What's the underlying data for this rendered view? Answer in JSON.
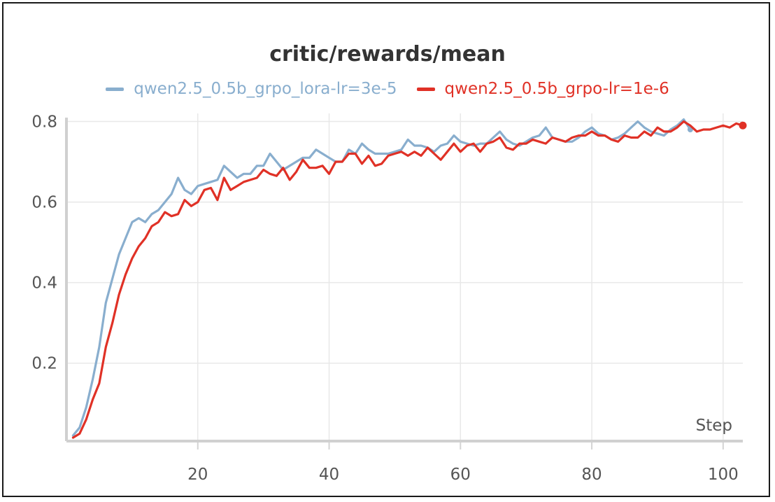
{
  "chart_data": {
    "type": "line",
    "title": "critic/rewards/mean",
    "xlabel": "Step",
    "ylabel": "",
    "xlim": [
      0,
      103
    ],
    "ylim": [
      0.01,
      0.82
    ],
    "x_ticks": [
      20,
      40,
      60,
      80,
      100
    ],
    "y_ticks": [
      0.2,
      0.4,
      0.6,
      0.8
    ],
    "grid": true,
    "legend_position": "top",
    "series": [
      {
        "name": "qwen2.5_0.5b_grpo_lora-lr=3e-5",
        "color": "#89aece",
        "x": [
          1,
          2,
          3,
          4,
          5,
          6,
          7,
          8,
          9,
          10,
          11,
          12,
          13,
          14,
          15,
          16,
          17,
          18,
          19,
          20,
          21,
          22,
          23,
          24,
          25,
          26,
          27,
          28,
          29,
          30,
          31,
          32,
          33,
          34,
          35,
          36,
          37,
          38,
          39,
          40,
          41,
          42,
          43,
          44,
          45,
          46,
          47,
          48,
          49,
          50,
          51,
          52,
          53,
          54,
          55,
          56,
          57,
          58,
          59,
          60,
          61,
          62,
          63,
          64,
          65,
          66,
          67,
          68,
          69,
          70,
          71,
          72,
          73,
          74,
          75,
          76,
          77,
          78,
          79,
          80,
          81,
          82,
          83,
          84,
          85,
          86,
          87,
          88,
          89,
          90,
          91,
          92,
          93,
          94,
          95
        ],
        "values": [
          0.02,
          0.04,
          0.09,
          0.16,
          0.24,
          0.35,
          0.41,
          0.47,
          0.51,
          0.55,
          0.56,
          0.55,
          0.57,
          0.58,
          0.6,
          0.62,
          0.66,
          0.63,
          0.62,
          0.64,
          0.645,
          0.65,
          0.655,
          0.69,
          0.675,
          0.66,
          0.67,
          0.67,
          0.69,
          0.69,
          0.72,
          0.7,
          0.68,
          0.69,
          0.7,
          0.71,
          0.71,
          0.73,
          0.72,
          0.71,
          0.7,
          0.7,
          0.73,
          0.72,
          0.745,
          0.73,
          0.72,
          0.72,
          0.72,
          0.725,
          0.73,
          0.755,
          0.74,
          0.74,
          0.735,
          0.725,
          0.74,
          0.745,
          0.765,
          0.75,
          0.745,
          0.74,
          0.745,
          0.745,
          0.76,
          0.775,
          0.755,
          0.745,
          0.74,
          0.75,
          0.76,
          0.765,
          0.785,
          0.76,
          0.755,
          0.75,
          0.75,
          0.76,
          0.775,
          0.785,
          0.77,
          0.765,
          0.755,
          0.76,
          0.77,
          0.785,
          0.8,
          0.785,
          0.775,
          0.77,
          0.765,
          0.78,
          0.79,
          0.805,
          0.78
        ]
      },
      {
        "name": "qwen2.5_0.5b_grpo-lr=1e-6",
        "color": "#e03126",
        "x": [
          1,
          2,
          3,
          4,
          5,
          6,
          7,
          8,
          9,
          10,
          11,
          12,
          13,
          14,
          15,
          16,
          17,
          18,
          19,
          20,
          21,
          22,
          23,
          24,
          25,
          26,
          27,
          28,
          29,
          30,
          31,
          32,
          33,
          34,
          35,
          36,
          37,
          38,
          39,
          40,
          41,
          42,
          43,
          44,
          45,
          46,
          47,
          48,
          49,
          50,
          51,
          52,
          53,
          54,
          55,
          56,
          57,
          58,
          59,
          60,
          61,
          62,
          63,
          64,
          65,
          66,
          67,
          68,
          69,
          70,
          71,
          72,
          73,
          74,
          75,
          76,
          77,
          78,
          79,
          80,
          81,
          82,
          83,
          84,
          85,
          86,
          87,
          88,
          89,
          90,
          91,
          92,
          93,
          94,
          95,
          96,
          97,
          98,
          99,
          100,
          101,
          102,
          103
        ],
        "values": [
          0.015,
          0.025,
          0.06,
          0.11,
          0.15,
          0.24,
          0.3,
          0.37,
          0.42,
          0.46,
          0.49,
          0.51,
          0.54,
          0.55,
          0.575,
          0.565,
          0.57,
          0.605,
          0.59,
          0.6,
          0.63,
          0.635,
          0.605,
          0.66,
          0.63,
          0.64,
          0.65,
          0.655,
          0.66,
          0.68,
          0.67,
          0.665,
          0.685,
          0.655,
          0.675,
          0.705,
          0.685,
          0.685,
          0.69,
          0.67,
          0.7,
          0.7,
          0.72,
          0.72,
          0.695,
          0.715,
          0.69,
          0.695,
          0.715,
          0.72,
          0.725,
          0.715,
          0.725,
          0.715,
          0.735,
          0.72,
          0.705,
          0.725,
          0.745,
          0.725,
          0.74,
          0.745,
          0.725,
          0.745,
          0.75,
          0.76,
          0.735,
          0.73,
          0.745,
          0.745,
          0.755,
          0.75,
          0.745,
          0.76,
          0.755,
          0.75,
          0.76,
          0.765,
          0.765,
          0.775,
          0.765,
          0.765,
          0.755,
          0.75,
          0.765,
          0.76,
          0.76,
          0.775,
          0.765,
          0.785,
          0.775,
          0.775,
          0.785,
          0.8,
          0.79,
          0.775,
          0.78,
          0.78,
          0.785,
          0.79,
          0.785,
          0.795,
          0.79
        ]
      }
    ]
  }
}
